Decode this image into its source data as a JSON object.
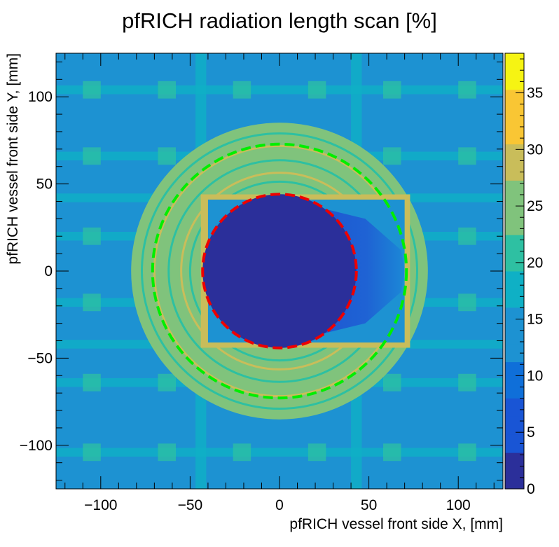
{
  "chart_data": {
    "type": "heatmap",
    "title": "pfRICH radiation length scan [%]",
    "xlabel": "pfRICH vessel front side X, [mm]",
    "ylabel": "pfRICH vessel front side Y, [mm]",
    "xlim": [
      -125,
      125
    ],
    "ylim": [
      -125,
      125
    ],
    "x_ticks": [
      -100,
      -50,
      0,
      50,
      100
    ],
    "y_ticks": [
      -100,
      -50,
      0,
      50,
      100
    ],
    "x_tick_labels": [
      "−100",
      "−50",
      "0",
      "50",
      "100"
    ],
    "y_tick_labels": [
      "−100",
      "−50",
      "0",
      "50",
      "100"
    ],
    "z_range": [
      0,
      38.5
    ],
    "z_ticks": [
      0,
      5,
      10,
      15,
      20,
      25,
      30,
      35
    ],
    "z_tick_labels": [
      "0",
      "5",
      "10",
      "15",
      "20",
      "25",
      "30",
      "35"
    ],
    "approx_regions": {
      "background_value": 15,
      "inner_hole_value": 3,
      "inner_hole_radius_mm": 43,
      "inner_hole_extends_to_x_mm": 72,
      "vessel_ring_value": 24,
      "vessel_ring_outer_radius_mm": 83,
      "vessel_wall_value": 30,
      "vertical_stripe_x_mm": [
        -44,
        43
      ],
      "horizontal_stripe_y_mm": [
        104,
        66,
        42,
        20,
        -18,
        -42,
        -64,
        -104
      ]
    },
    "overlays": [
      {
        "shape": "dashed-circle",
        "color": "#00ee00",
        "radius_mm": 71,
        "center_mm": [
          0,
          0
        ]
      },
      {
        "shape": "dashed-circle",
        "color": "#ee0000",
        "radius_mm": 43,
        "center_mm": [
          0,
          0
        ]
      }
    ],
    "palette_stops": [
      "#2b2f9a",
      "#1955d5",
      "#0f6fd9",
      "#1d92d2",
      "#0fb0c5",
      "#2ec0a2",
      "#80c37c",
      "#c9bd5a",
      "#f9c634",
      "#f6f413"
    ]
  }
}
